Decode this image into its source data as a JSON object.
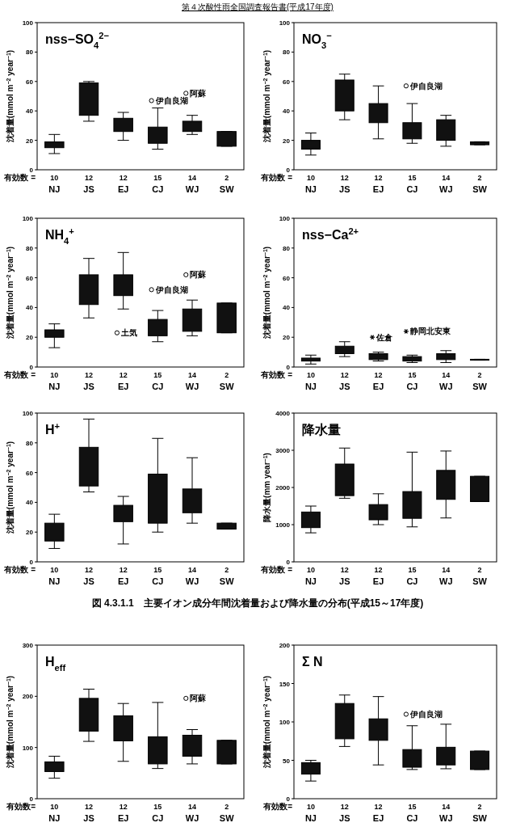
{
  "chart_data": [
    {
      "type": "box",
      "title": "nss−SO$_{4}$$^{2−}$",
      "ylabel": "沈着量(mmol m$^{−2}$ year$^{−1}$)",
      "categories": [
        "NJ",
        "JS",
        "EJ",
        "CJ",
        "WJ",
        "SW"
      ],
      "ylim": [
        0,
        100
      ],
      "yticks": [
        0,
        20,
        40,
        60,
        80,
        100
      ],
      "grid": false,
      "marker": "circle",
      "boxes": [
        {
          "low": 11,
          "q1": 15,
          "q3": 19,
          "high": 24
        },
        {
          "low": 33,
          "q1": 37,
          "q3": 59,
          "high": 60
        },
        {
          "low": 20,
          "q1": 26,
          "q3": 35,
          "high": 39
        },
        {
          "low": 14,
          "q1": 18,
          "q3": 29,
          "high": 42
        },
        {
          "low": 24,
          "q1": 26,
          "q3": 33,
          "high": 37
        },
        {
          "low": 16,
          "q1": 16,
          "q3": 26,
          "high": 26
        }
      ],
      "series": [
        {
          "type": "scatter",
          "x": [
            "CJ",
            "WJ"
          ],
          "values": [
            47,
            52
          ]
        }
      ],
      "annotations": [
        "有効数 =",
        "10",
        "12",
        "12",
        "15",
        "14",
        "2",
        "伊自良湖",
        "阿蘇",
        "第４次酸性雨全国調査報告書(平成17年度)"
      ]
    },
    {
      "type": "box",
      "title": "NO$_{3}$$^{−}$",
      "ylabel": "沈着量(mmol m$^{−2}$ year$^{−1}$)",
      "categories": [
        "NJ",
        "JS",
        "EJ",
        "CJ",
        "WJ",
        "SW"
      ],
      "ylim": [
        0,
        100
      ],
      "yticks": [
        0,
        20,
        40,
        60,
        80,
        100
      ],
      "grid": false,
      "marker": "circle",
      "boxes": [
        {
          "low": 10,
          "q1": 14,
          "q3": 20,
          "high": 25
        },
        {
          "low": 34,
          "q1": 40,
          "q3": 61,
          "high": 65
        },
        {
          "low": 21,
          "q1": 32,
          "q3": 45,
          "high": 57
        },
        {
          "low": 18,
          "q1": 21,
          "q3": 32,
          "high": 45
        },
        {
          "low": 16,
          "q1": 20,
          "q3": 34,
          "high": 37
        },
        {
          "low": 17,
          "q1": 17,
          "q3": 19,
          "high": 19
        }
      ],
      "series": [
        {
          "type": "scatter",
          "x": [
            "CJ"
          ],
          "values": [
            57
          ]
        }
      ],
      "annotations": [
        "有効数 =",
        "10",
        "12",
        "12",
        "15",
        "14",
        "2",
        "伊自良湖"
      ]
    },
    {
      "type": "box",
      "title": "NH$_{4}$$^{+}$",
      "ylabel": "沈着量(mmol m$^{−2}$ year$^{−1}$)",
      "categories": [
        "NJ",
        "JS",
        "EJ",
        "CJ",
        "WJ",
        "SW"
      ],
      "ylim": [
        0,
        100
      ],
      "yticks": [
        0,
        20,
        40,
        60,
        80,
        100
      ],
      "grid": false,
      "marker": "circle",
      "boxes": [
        {
          "low": 13,
          "q1": 20,
          "q3": 25,
          "high": 29
        },
        {
          "low": 33,
          "q1": 42,
          "q3": 62,
          "high": 73
        },
        {
          "low": 39,
          "q1": 48,
          "q3": 62,
          "high": 77
        },
        {
          "low": 17,
          "q1": 21,
          "q3": 32,
          "high": 38
        },
        {
          "low": 21,
          "q1": 24,
          "q3": 39,
          "high": 45
        },
        {
          "low": 23,
          "q1": 23,
          "q3": 43,
          "high": 43
        }
      ],
      "series": [
        {
          "type": "scatter",
          "x": [
            "EJ",
            "CJ",
            "WJ"
          ],
          "values": [
            23,
            52,
            62
          ]
        }
      ],
      "annotations": [
        "有効数 =",
        "10",
        "12",
        "12",
        "15",
        "14",
        "2",
        "土気",
        "伊自良湖",
        "阿蘇"
      ]
    },
    {
      "type": "box",
      "title": "nss−Ca$^{2+}$",
      "ylabel": "沈着量(mmol m$^{−2}$ year$^{−1}$)",
      "categories": [
        "NJ",
        "JS",
        "EJ",
        "CJ",
        "WJ",
        "SW"
      ],
      "ylim": [
        0,
        100
      ],
      "yticks": [
        0,
        20,
        40,
        60,
        80,
        100
      ],
      "grid": false,
      "marker": "cross",
      "boxes": [
        {
          "low": 2,
          "q1": 4,
          "q3": 6,
          "high": 8
        },
        {
          "low": 7,
          "q1": 9,
          "q3": 14,
          "high": 17
        },
        {
          "low": 4,
          "q1": 5,
          "q3": 9,
          "high": 10
        },
        {
          "low": 3,
          "q1": 4,
          "q3": 7,
          "high": 8
        },
        {
          "low": 3,
          "q1": 5,
          "q3": 9,
          "high": 11
        },
        {
          "low": 4.6,
          "q1": 4.6,
          "q3": 5.2,
          "high": 5.2
        }
      ],
      "series": [
        {
          "type": "scatter",
          "x": [
            "EJ",
            "CJ"
          ],
          "values": [
            20,
            24
          ]
        }
      ],
      "annotations": [
        "有効数 =",
        "10",
        "12",
        "12",
        "15",
        "14",
        "2",
        "佐倉",
        "静岡北安東"
      ]
    },
    {
      "type": "box",
      "title": "H$^{+}$",
      "ylabel": "沈着量(mmol m$^{−2}$ year$^{−1}$)",
      "categories": [
        "NJ",
        "JS",
        "EJ",
        "CJ",
        "WJ",
        "SW"
      ],
      "ylim": [
        0,
        100
      ],
      "yticks": [
        0,
        20,
        40,
        60,
        80,
        100
      ],
      "grid": false,
      "boxes": [
        {
          "low": 9,
          "q1": 14,
          "q3": 26,
          "high": 32
        },
        {
          "low": 47,
          "q1": 51,
          "q3": 77,
          "high": 96
        },
        {
          "low": 12,
          "q1": 27,
          "q3": 38,
          "high": 44
        },
        {
          "low": 20,
          "q1": 26,
          "q3": 59,
          "high": 83
        },
        {
          "low": 26,
          "q1": 33,
          "q3": 49,
          "high": 70
        },
        {
          "low": 22,
          "q1": 22,
          "q3": 26,
          "high": 26
        }
      ],
      "annotations": [
        "有効数 =",
        "10",
        "12",
        "12",
        "15",
        "14",
        "2"
      ]
    },
    {
      "type": "box",
      "title": "降水量",
      "ylabel": "降水量(mm year$^{−1}$)",
      "categories": [
        "NJ",
        "JS",
        "EJ",
        "CJ",
        "WJ",
        "SW"
      ],
      "ylim": [
        0,
        4000
      ],
      "yticks": [
        0,
        1000,
        2000,
        3000,
        4000
      ],
      "grid": false,
      "boxes": [
        {
          "low": 780,
          "q1": 920,
          "q3": 1340,
          "high": 1500
        },
        {
          "low": 1710,
          "q1": 1780,
          "q3": 2630,
          "high": 3060
        },
        {
          "low": 1000,
          "q1": 1130,
          "q3": 1540,
          "high": 1830
        },
        {
          "low": 940,
          "q1": 1170,
          "q3": 1890,
          "high": 2950
        },
        {
          "low": 1180,
          "q1": 1680,
          "q3": 2460,
          "high": 2980
        },
        {
          "low": 1620,
          "q1": 1620,
          "q3": 2300,
          "high": 2300
        }
      ],
      "annotations": [
        "有効数 =",
        "10",
        "12",
        "12",
        "15",
        "14",
        "2",
        "図 4.3.1.1　主要イオン成分年間沈着量および降水量の分布(平成15～17年度)"
      ]
    },
    {
      "type": "box",
      "title": "H$_{eff}$",
      "ylabel": "沈着量(mmol m$^{−2}$ year$^{−1}$)",
      "categories": [
        "NJ",
        "JS",
        "EJ",
        "CJ",
        "WJ",
        "SW"
      ],
      "ylim": [
        0,
        300
      ],
      "yticks": [
        0,
        100,
        200,
        300
      ],
      "grid": false,
      "marker": "circle",
      "boxes": [
        {
          "low": 40,
          "q1": 53,
          "q3": 72,
          "high": 83
        },
        {
          "low": 112,
          "q1": 132,
          "q3": 196,
          "high": 214
        },
        {
          "low": 73,
          "q1": 113,
          "q3": 162,
          "high": 186
        },
        {
          "low": 59,
          "q1": 68,
          "q3": 121,
          "high": 188
        },
        {
          "low": 68,
          "q1": 83,
          "q3": 124,
          "high": 135
        },
        {
          "low": 68,
          "q1": 68,
          "q3": 114,
          "high": 114
        }
      ],
      "series": [
        {
          "type": "scatter",
          "x": [
            "WJ"
          ],
          "values": [
            196
          ]
        }
      ],
      "annotations": [
        "有効数=",
        "10",
        "12",
        "12",
        "15",
        "14",
        "2",
        "阿蘇"
      ]
    },
    {
      "type": "box",
      "title": "Σ N",
      "ylabel": "沈着量(mmol m$^{−2}$ year$^{−1}$)",
      "categories": [
        "NJ",
        "JS",
        "EJ",
        "CJ",
        "WJ",
        "SW"
      ],
      "ylim": [
        0,
        200
      ],
      "yticks": [
        0,
        50,
        100,
        150,
        200
      ],
      "grid": false,
      "marker": "circle",
      "boxes": [
        {
          "low": 23,
          "q1": 32,
          "q3": 47,
          "high": 50
        },
        {
          "low": 68,
          "q1": 78,
          "q3": 124,
          "high": 135
        },
        {
          "low": 44,
          "q1": 76,
          "q3": 104,
          "high": 133
        },
        {
          "low": 38,
          "q1": 41,
          "q3": 64,
          "high": 95
        },
        {
          "low": 39,
          "q1": 44,
          "q3": 67,
          "high": 97
        },
        {
          "low": 38,
          "q1": 38,
          "q3": 62,
          "high": 62
        }
      ],
      "series": [
        {
          "type": "scatter",
          "x": [
            "CJ"
          ],
          "values": [
            110
          ]
        }
      ],
      "annotations": [
        "有効数=",
        "10",
        "12",
        "12",
        "15",
        "14",
        "2",
        "伊自良湖"
      ]
    }
  ]
}
